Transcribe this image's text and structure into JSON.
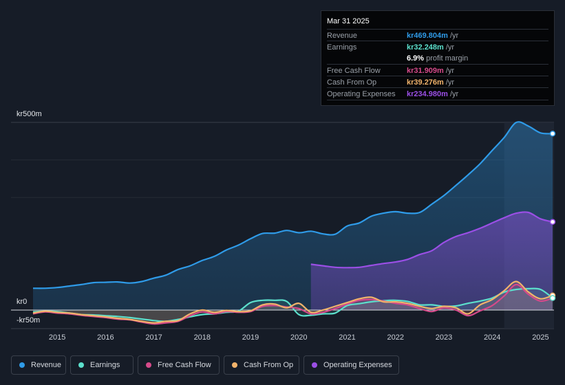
{
  "chart_data": {
    "type": "area",
    "currency_unit": "kr",
    "y_axis_labels": [
      "kr500m",
      "kr0",
      "-kr50m"
    ],
    "ylim": [
      -50,
      500
    ],
    "x_ticks": [
      "2015",
      "2016",
      "2017",
      "2018",
      "2019",
      "2020",
      "2021",
      "2022",
      "2023",
      "2024",
      "2025"
    ],
    "x_range": [
      2014.5,
      2025.25
    ],
    "forecast_shade_start": 2024.25,
    "colors": {
      "revenue": "#2f9be8",
      "earnings": "#5ce0cc",
      "free_cash_flow": "#d64a8a",
      "cash_from_op": "#f2b36b",
      "operating_expenses": "#9b4fe6"
    },
    "series": [
      {
        "name": "Revenue",
        "key": "revenue",
        "x": [
          2014.5,
          2014.75,
          2015.0,
          2015.25,
          2015.5,
          2015.75,
          2016.0,
          2016.25,
          2016.5,
          2016.75,
          2017.0,
          2017.25,
          2017.5,
          2017.75,
          2018.0,
          2018.25,
          2018.5,
          2018.75,
          2019.0,
          2019.25,
          2019.5,
          2019.75,
          2020.0,
          2020.25,
          2020.5,
          2020.75,
          2021.0,
          2021.25,
          2021.5,
          2021.75,
          2022.0,
          2022.25,
          2022.5,
          2022.75,
          2023.0,
          2023.25,
          2023.5,
          2023.75,
          2024.0,
          2024.25,
          2024.5,
          2024.75,
          2025.0,
          2025.25
        ],
        "values": [
          58,
          58,
          60,
          64,
          68,
          73,
          74,
          75,
          72,
          76,
          85,
          93,
          108,
          118,
          132,
          143,
          160,
          173,
          190,
          204,
          205,
          212,
          206,
          210,
          203,
          202,
          224,
          232,
          250,
          258,
          262,
          258,
          260,
          282,
          305,
          332,
          360,
          390,
          425,
          460,
          500,
          490,
          472,
          470
        ]
      },
      {
        "name": "Earnings",
        "key": "earnings",
        "x": [
          2014.5,
          2014.75,
          2015.0,
          2015.25,
          2015.5,
          2015.75,
          2016.0,
          2016.25,
          2016.5,
          2016.75,
          2017.0,
          2017.25,
          2017.5,
          2017.75,
          2018.0,
          2018.25,
          2018.5,
          2018.75,
          2019.0,
          2019.25,
          2019.5,
          2019.75,
          2020.0,
          2020.25,
          2020.5,
          2020.75,
          2021.0,
          2021.25,
          2021.5,
          2021.75,
          2022.0,
          2022.25,
          2022.5,
          2022.75,
          2023.0,
          2023.25,
          2023.5,
          2023.75,
          2024.0,
          2024.25,
          2024.5,
          2024.75,
          2025.0,
          2025.25
        ],
        "values": [
          -5,
          -3,
          -4,
          -8,
          -12,
          -13,
          -15,
          -17,
          -20,
          -24,
          -28,
          -30,
          -25,
          -18,
          -12,
          -10,
          -6,
          -3,
          20,
          26,
          26,
          23,
          -12,
          -14,
          -10,
          -8,
          12,
          17,
          22,
          25,
          26,
          23,
          14,
          14,
          10,
          11,
          18,
          24,
          32,
          48,
          55,
          57,
          55,
          32
        ]
      },
      {
        "name": "Free Cash Flow",
        "key": "free_cash_flow",
        "x": [
          2014.5,
          2014.75,
          2015.0,
          2015.25,
          2015.5,
          2015.75,
          2016.0,
          2016.25,
          2016.5,
          2016.75,
          2017.0,
          2017.25,
          2017.5,
          2017.75,
          2018.0,
          2018.25,
          2018.5,
          2018.75,
          2019.0,
          2019.25,
          2019.5,
          2019.75,
          2020.0,
          2020.25,
          2020.5,
          2020.75,
          2021.0,
          2021.25,
          2021.5,
          2021.75,
          2022.0,
          2022.25,
          2022.5,
          2022.75,
          2023.0,
          2023.25,
          2023.5,
          2023.75,
          2024.0,
          2024.25,
          2024.5,
          2024.75,
          2025.0,
          2025.25
        ],
        "values": [
          -10,
          -5,
          -8,
          -10,
          -14,
          -17,
          -20,
          -24,
          -26,
          -32,
          -37,
          -34,
          -30,
          -15,
          -5,
          -10,
          -4,
          -6,
          -4,
          10,
          12,
          8,
          4,
          -10,
          -6,
          4,
          16,
          26,
          28,
          24,
          18,
          14,
          4,
          -4,
          6,
          0,
          -15,
          -2,
          12,
          38,
          68,
          42,
          24,
          32
        ]
      },
      {
        "name": "Cash From Op",
        "key": "cash_from_op",
        "x": [
          2014.5,
          2014.75,
          2015.0,
          2015.25,
          2015.5,
          2015.75,
          2016.0,
          2016.25,
          2016.5,
          2016.75,
          2017.0,
          2017.25,
          2017.5,
          2017.75,
          2018.0,
          2018.25,
          2018.5,
          2018.75,
          2019.0,
          2019.25,
          2019.5,
          2019.75,
          2020.0,
          2020.25,
          2020.5,
          2020.75,
          2021.0,
          2021.25,
          2021.5,
          2021.75,
          2022.0,
          2022.25,
          2022.5,
          2022.75,
          2023.0,
          2023.25,
          2023.5,
          2023.75,
          2024.0,
          2024.25,
          2024.5,
          2024.75,
          2025.0,
          2025.25
        ],
        "values": [
          -8,
          -3,
          -6,
          -8,
          -12,
          -15,
          -18,
          -22,
          -25,
          -30,
          -34,
          -30,
          -28,
          -10,
          0,
          -6,
          -1,
          -4,
          -2,
          14,
          16,
          6,
          18,
          -6,
          0,
          10,
          20,
          30,
          34,
          22,
          22,
          18,
          10,
          4,
          10,
          6,
          -10,
          14,
          28,
          52,
          76,
          48,
          30,
          39
        ]
      },
      {
        "name": "Operating Expenses",
        "key": "operating_expenses",
        "x": [
          2020.25,
          2020.5,
          2020.75,
          2021.0,
          2021.25,
          2021.5,
          2021.75,
          2022.0,
          2022.25,
          2022.5,
          2022.75,
          2023.0,
          2023.25,
          2023.5,
          2023.75,
          2024.0,
          2024.25,
          2024.5,
          2024.75,
          2025.0,
          2025.25
        ],
        "values": [
          122,
          118,
          114,
          113,
          114,
          119,
          124,
          128,
          135,
          148,
          158,
          180,
          196,
          206,
          218,
          232,
          246,
          258,
          260,
          243,
          235
        ]
      }
    ]
  },
  "tooltip": {
    "date": "Mar 31 2025",
    "rows": [
      {
        "label": "Revenue",
        "value": "kr469.804m",
        "suffix": "/yr",
        "color": "#2f9be8"
      },
      {
        "label": "Earnings",
        "value": "kr32.248m",
        "suffix": "/yr",
        "color": "#5ce0cc"
      },
      {
        "label": "",
        "value": "6.9%",
        "suffix": "profit margin",
        "color": "#ffffff"
      },
      {
        "label": "Free Cash Flow",
        "value": "kr31.909m",
        "suffix": "/yr",
        "color": "#d64a8a"
      },
      {
        "label": "Cash From Op",
        "value": "kr39.276m",
        "suffix": "/yr",
        "color": "#f2b36b"
      },
      {
        "label": "Operating Expenses",
        "value": "kr234.980m",
        "suffix": "/yr",
        "color": "#9b4fe6"
      }
    ]
  },
  "legend": [
    {
      "label": "Revenue",
      "color": "#2f9be8"
    },
    {
      "label": "Earnings",
      "color": "#5ce0cc"
    },
    {
      "label": "Free Cash Flow",
      "color": "#d64a8a"
    },
    {
      "label": "Cash From Op",
      "color": "#f2b36b"
    },
    {
      "label": "Operating Expenses",
      "color": "#9b4fe6"
    }
  ]
}
